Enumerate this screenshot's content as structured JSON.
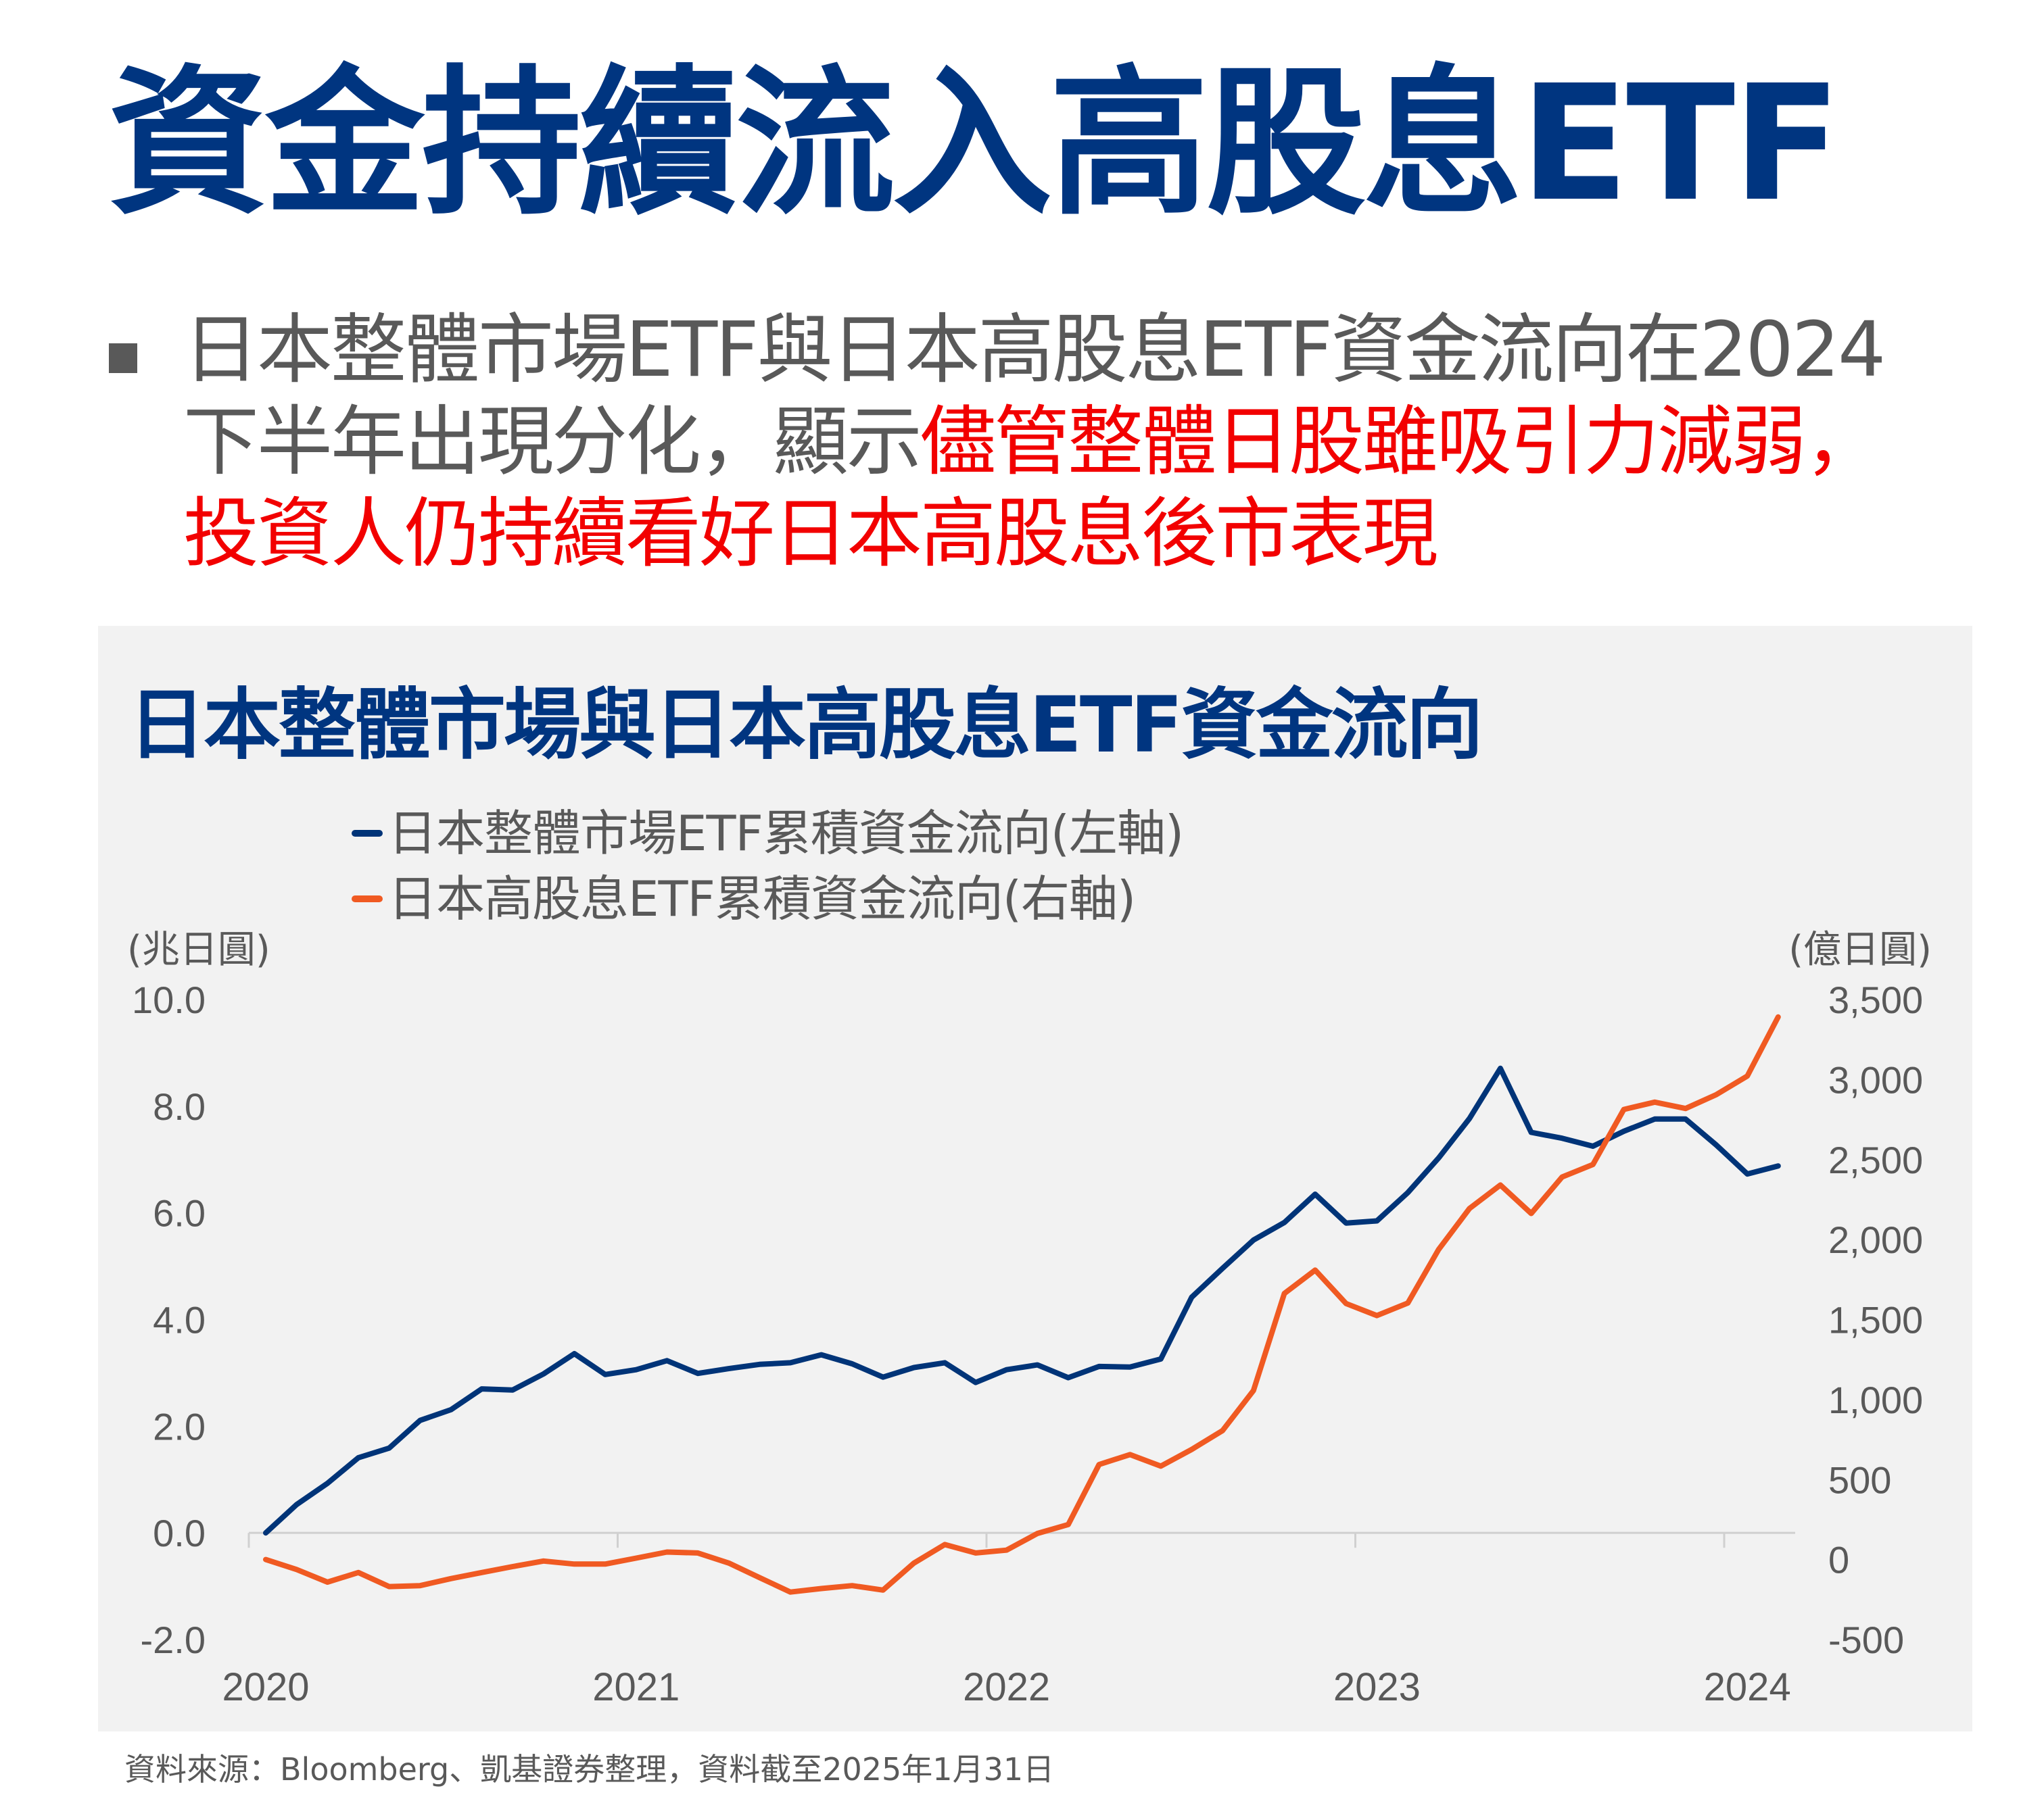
{
  "header": {
    "title": "資金持續流入高股息ETF"
  },
  "summary": {
    "line1": "日本整體市場ETF與日本高股息ETF資金流向在2024",
    "line2_normal": "下半年出現分化，顯示",
    "line2_highlight": "儘管整體日股雖吸引力減弱，",
    "line3_highlight": "投資人仍持續看好日本高股息後市表現",
    "highlight_color": "#f20000"
  },
  "footnote": "資料來源：Bloomberg、凱基證券整理，資料截至2025年1月31日",
  "chart_data": {
    "type": "line",
    "title": "日本整體市場與日本高股息ETF資金流向",
    "x_tick_labels": [
      "2020",
      "2021",
      "2022",
      "2023",
      "2024"
    ],
    "y_left": {
      "unit_label": "(兆日圓)",
      "range": [
        -2,
        10
      ],
      "tick_labels": [
        "10.0",
        "8.0",
        "6.0",
        "4.0",
        "2.0",
        "0.0",
        "-2.0"
      ],
      "ticks": [
        10,
        8,
        6,
        4,
        2,
        0,
        -2
      ]
    },
    "y_right": {
      "unit_label": "(億日圓)",
      "range": [
        -500,
        3500
      ],
      "tick_labels": [
        "3,500",
        "3,000",
        "2,500",
        "2,000",
        "1,500",
        "1,000",
        "500",
        "0",
        "-500"
      ],
      "ticks": [
        3500,
        3000,
        2500,
        2000,
        1500,
        1000,
        500,
        0,
        -500
      ]
    },
    "grid": false,
    "legend_position": "top",
    "series": [
      {
        "name": "日本整體市場ETF累積資金流向(左軸)",
        "axis": "left",
        "color": "#003478",
        "values": [
          0.0,
          0.53,
          0.93,
          1.41,
          1.59,
          2.11,
          2.31,
          2.7,
          2.68,
          2.98,
          3.36,
          2.97,
          3.06,
          3.23,
          2.99,
          3.08,
          3.16,
          3.19,
          3.34,
          3.17,
          2.92,
          3.1,
          3.19,
          2.82,
          3.06,
          3.15,
          2.91,
          3.12,
          3.11,
          3.26,
          4.42,
          4.96,
          5.49,
          5.82,
          6.35,
          5.81,
          5.85,
          6.38,
          7.03,
          7.77,
          8.71,
          7.51,
          7.4,
          7.25,
          7.53,
          7.76,
          7.76,
          7.27,
          6.73,
          6.88
        ]
      },
      {
        "name": "日本高股息ETF累積資金流向(右軸)",
        "axis": "right",
        "color": "#f05a22",
        "values": [
          0,
          -62,
          -141,
          -81,
          -169,
          -163,
          -119,
          -81,
          -44,
          -9,
          -28,
          -28,
          9,
          47,
          41,
          -22,
          -113,
          -203,
          -181,
          -163,
          -191,
          -22,
          94,
          41,
          59,
          163,
          219,
          594,
          656,
          584,
          688,
          806,
          1056,
          1663,
          1809,
          1600,
          1525,
          1603,
          1938,
          2194,
          2341,
          2163,
          2391,
          2469,
          2813,
          2859,
          2819,
          2906,
          3022,
          3391
        ]
      }
    ]
  }
}
